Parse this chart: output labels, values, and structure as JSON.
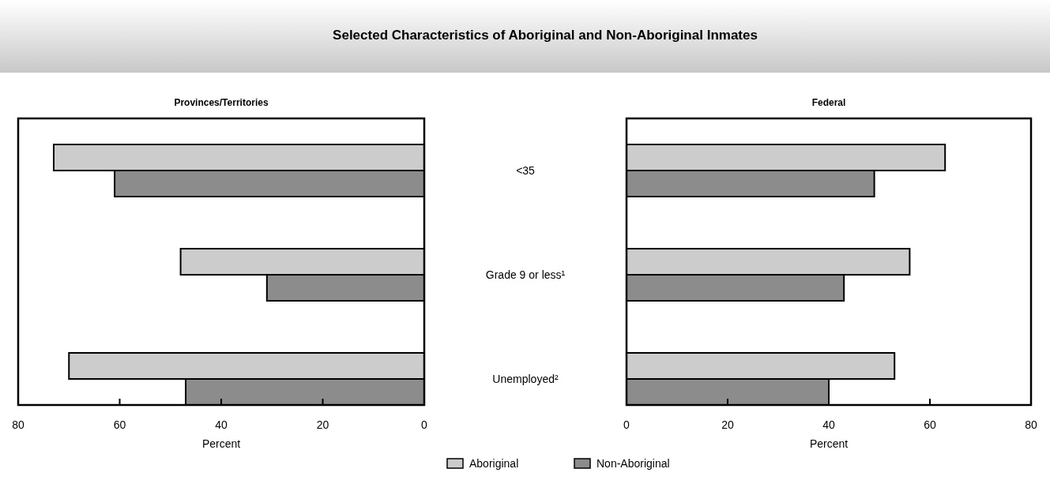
{
  "chart_data": [
    {
      "type": "bar",
      "orientation": "horizontal",
      "title": "Selected Characteristics of Aboriginal and Non-Aboriginal Inmates",
      "subtitle": "Provinces/Territories",
      "xlabel": "Percent",
      "categories": [
        "<35",
        "Grade 9 or less¹",
        "Unemployed²"
      ],
      "series": [
        {
          "name": "Aboriginal",
          "color": "#cccccc",
          "values": [
            73,
            48,
            70
          ]
        },
        {
          "name": "Non-Aboriginal",
          "color": "#8c8c8c",
          "values": [
            61,
            31,
            47
          ]
        }
      ],
      "xlim": [
        80,
        0
      ],
      "xticks": [
        80,
        60,
        40,
        20,
        0
      ],
      "grid": false,
      "legend": "bottom"
    },
    {
      "type": "bar",
      "orientation": "horizontal",
      "title": "Federal",
      "xlabel": "Percent",
      "categories": [
        null,
        null,
        null
      ],
      "series": [
        {
          "color": "#cccccc",
          "values": [
            63,
            56,
            53
          ]
        },
        {
          "color": "#8c8c8c",
          "values": [
            49,
            43,
            40
          ]
        }
      ],
      "xlim": [
        0,
        80
      ],
      "xticks": [
        0,
        20,
        40,
        60,
        80
      ],
      "grid": false
    }
  ]
}
